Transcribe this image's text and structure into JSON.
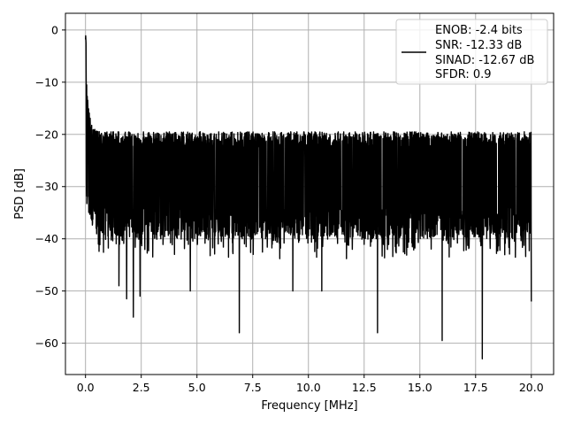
{
  "chart_data": {
    "type": "line",
    "title": "",
    "xlabel": "Frequency [MHz]",
    "ylabel": "PSD [dB]",
    "xlim": [
      -0.9,
      21.0
    ],
    "ylim": [
      -66.0,
      3.2
    ],
    "x_ticks": [
      0.0,
      2.5,
      5.0,
      7.5,
      10.0,
      12.5,
      15.0,
      17.5,
      20.0
    ],
    "x_tick_labels": [
      "0.0",
      "2.5",
      "5.0",
      "7.5",
      "10.0",
      "12.5",
      "15.0",
      "17.5",
      "20.0"
    ],
    "y_ticks": [
      0,
      -10,
      -20,
      -30,
      -40,
      -50,
      -60
    ],
    "y_tick_labels": [
      "0",
      "−10",
      "−20",
      "−30",
      "−40",
      "−50",
      "−60"
    ],
    "grid": true,
    "legend_position": "top-right",
    "series": [
      {
        "name": "ENOB: -2.4 bits\nSNR: -12.33 dB\nSINAD: -12.67 dB\nSFDR: 0.9",
        "color": "#000000",
        "x_range": [
          0.0,
          20.0
        ],
        "peak_db": -0.5,
        "noise_band_db": [
          -40,
          -20
        ],
        "notable_dips": [
          {
            "x": 1.5,
            "y": -49
          },
          {
            "x": 1.85,
            "y": -51.5
          },
          {
            "x": 2.15,
            "y": -55
          },
          {
            "x": 2.45,
            "y": -51
          },
          {
            "x": 4.7,
            "y": -50
          },
          {
            "x": 6.9,
            "y": -58
          },
          {
            "x": 9.3,
            "y": -50
          },
          {
            "x": 10.6,
            "y": -50
          },
          {
            "x": 13.1,
            "y": -58
          },
          {
            "x": 16.0,
            "y": -59.5
          },
          {
            "x": 17.8,
            "y": -63
          },
          {
            "x": 20.0,
            "y": -52
          }
        ]
      }
    ],
    "legend_lines": [
      "ENOB: -2.4 bits",
      "SNR: -12.33 dB",
      "SINAD: -12.67 dB",
      "SFDR: 0.9"
    ]
  }
}
